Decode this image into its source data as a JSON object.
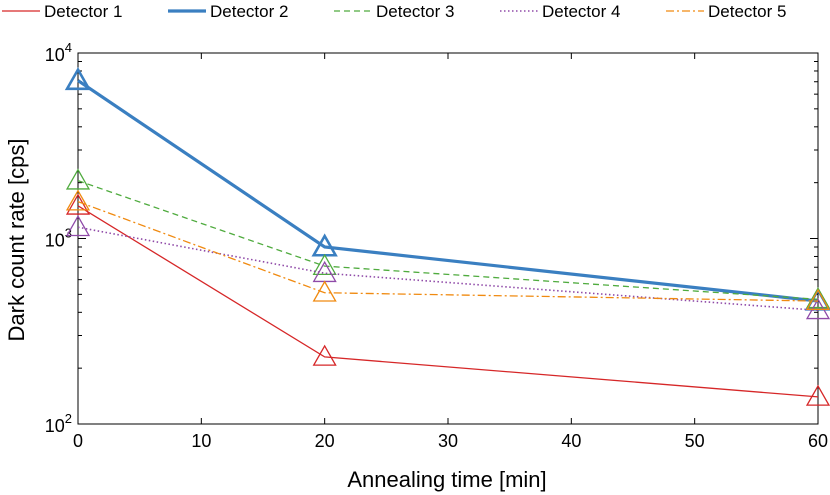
{
  "chart_data": {
    "type": "line",
    "title": "",
    "xlabel": "Annealing time [min]",
    "ylabel": "Dark count rate [cps]",
    "xlim": [
      0,
      60
    ],
    "ylim": [
      100,
      10000
    ],
    "yscale": "log",
    "x_ticks": [
      0,
      10,
      20,
      30,
      40,
      50,
      60
    ],
    "y_ticks": [
      {
        "value": 100,
        "base": "10",
        "exp": "2"
      },
      {
        "value": 1000,
        "base": "10",
        "exp": "3"
      },
      {
        "value": 10000,
        "base": "10",
        "exp": "4"
      }
    ],
    "grid": false,
    "legend_position": "top",
    "x": [
      0,
      20,
      60
    ],
    "series": [
      {
        "name": "Detector 1",
        "values": [
          1500,
          230,
          140
        ],
        "color": "#d62728",
        "line_style": "solid",
        "line_width": 1.3,
        "marker": "triangle"
      },
      {
        "name": "Detector 2",
        "values": [
          7100,
          900,
          460
        ],
        "color": "#3a7fc1",
        "line_style": "solid",
        "line_width": 3.2,
        "marker": "triangle"
      },
      {
        "name": "Detector 3",
        "values": [
          2050,
          710,
          470
        ],
        "color": "#4fab3e",
        "line_style": "dashed",
        "line_width": 1.3,
        "marker": "triangle"
      },
      {
        "name": "Detector 4",
        "values": [
          1150,
          650,
          410
        ],
        "color": "#8f4aa8",
        "line_style": "dotted",
        "line_width": 1.6,
        "marker": "triangle"
      },
      {
        "name": "Detector 5",
        "values": [
          1580,
          510,
          460
        ],
        "color": "#f08a10",
        "line_style": "dashdot",
        "line_width": 1.3,
        "marker": "triangle"
      }
    ]
  }
}
